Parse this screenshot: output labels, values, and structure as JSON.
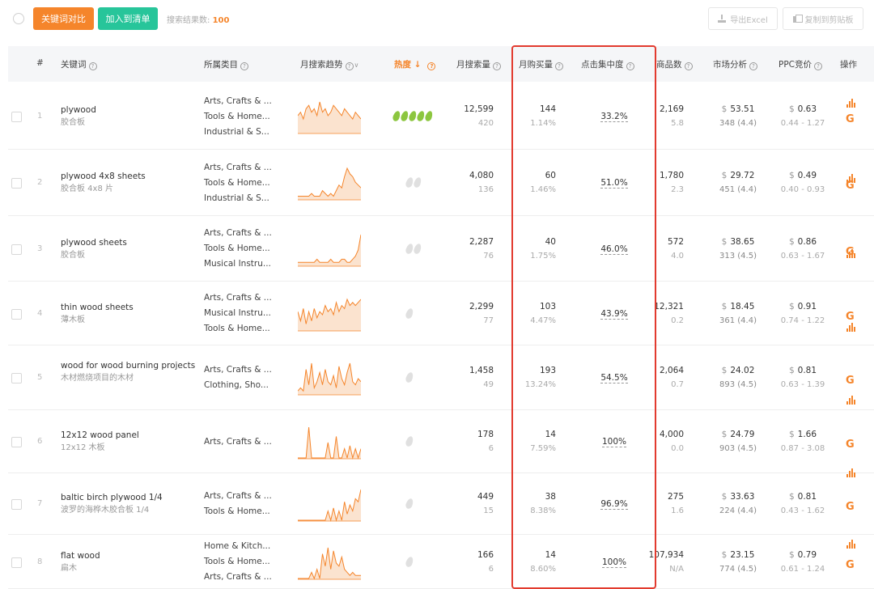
{
  "toolbar": {
    "compare_label": "关键词对比",
    "add_list_label": "加入到清单",
    "result_label": "搜索结果数:",
    "result_count": "100",
    "export_label": "导出Excel",
    "copy_label": "复制到剪贴板"
  },
  "headers": {
    "num": "#",
    "keyword": "关键词",
    "category": "所属类目",
    "trend": "月搜索趋势",
    "hot": "热度",
    "hot_arrow": "↓",
    "monthly_search": "月搜索量",
    "monthly_purchase": "月购买量",
    "click_concentration": "点击集中度",
    "product_count": "商品数",
    "market_analysis": "市场分析",
    "ppc": "PPC竞价",
    "ops": "操作"
  },
  "colors": {
    "orange": "#f5852b",
    "green": "#27c59a",
    "leaf": "#8cc63f",
    "highlight": "#e23b2f"
  },
  "rows": [
    {
      "num": "1",
      "kw_en": "plywood",
      "kw_cn": "胶合板",
      "cats": [
        "Arts, Crafts & ...",
        "Tools & Home...",
        "Industrial & S..."
      ],
      "hot": 4,
      "search": "12,599",
      "search_sub": "420",
      "purchase": "144",
      "purchase_rate": "1.14%",
      "conc": "33.2%",
      "products": "2,169",
      "products_sub": "5.8",
      "mkt_price": "53.51",
      "mkt_sub": "348 (4.4)",
      "ppc": "0.63",
      "ppc_range": "0.44 - 1.27",
      "trend": [
        5,
        6,
        4,
        7,
        8,
        6,
        7,
        5,
        9,
        6,
        7,
        5,
        6,
        8,
        7,
        6,
        5,
        7,
        6,
        5,
        4,
        6,
        5,
        4
      ]
    },
    {
      "num": "2",
      "kw_en": "plywood 4x8 sheets",
      "kw_cn": "胶合板 4x8 片",
      "cats": [
        "Arts, Crafts & ...",
        "Tools & Home...",
        "Industrial & S..."
      ],
      "hot": 2,
      "search": "4,080",
      "search_sub": "136",
      "purchase": "60",
      "purchase_rate": "1.46%",
      "conc": "51.0%",
      "products": "1,780",
      "products_sub": "2.3",
      "mkt_price": "29.72",
      "mkt_sub": "451 (4.4)",
      "ppc": "0.49",
      "ppc_range": "0.40 - 0.93",
      "trend": [
        1,
        1,
        1,
        1,
        1,
        2,
        1,
        1,
        1,
        3,
        2,
        1,
        2,
        1,
        3,
        5,
        4,
        8,
        11,
        9,
        8,
        6,
        5,
        4
      ]
    },
    {
      "num": "3",
      "kw_en": "plywood sheets",
      "kw_cn": "胶合板",
      "cats": [
        "Arts, Crafts & ...",
        "Tools & Home...",
        "Musical Instru..."
      ],
      "hot": 2,
      "search": "2,287",
      "search_sub": "76",
      "purchase": "40",
      "purchase_rate": "1.75%",
      "conc": "46.0%",
      "products": "572",
      "products_sub": "4.0",
      "mkt_price": "38.65",
      "mkt_sub": "313 (4.5)",
      "ppc": "0.86",
      "ppc_range": "0.63 - 1.67",
      "trend": [
        1,
        1,
        1,
        1,
        1,
        1,
        1,
        2,
        1,
        1,
        1,
        1,
        2,
        1,
        1,
        1,
        2,
        2,
        1,
        1,
        2,
        3,
        5,
        10
      ]
    },
    {
      "num": "4",
      "kw_en": "thin wood sheets",
      "kw_cn": "薄木板",
      "cats": [
        "Arts, Crafts & ...",
        "Musical Instru...",
        "Tools & Home..."
      ],
      "hot": 1,
      "search": "2,299",
      "search_sub": "77",
      "purchase": "103",
      "purchase_rate": "4.47%",
      "conc": "43.9%",
      "products": "12,321",
      "products_sub": "0.2",
      "mkt_price": "18.45",
      "mkt_sub": "361 (4.4)",
      "ppc": "0.91",
      "ppc_range": "0.74 - 1.22",
      "trend": [
        6,
        3,
        7,
        2,
        6,
        3,
        7,
        4,
        6,
        5,
        8,
        6,
        7,
        5,
        9,
        6,
        8,
        7,
        10,
        8,
        9,
        8,
        9,
        10
      ]
    },
    {
      "num": "5",
      "kw_en": "wood for wood burning projects",
      "kw_cn": "木材燃烧项目的木材",
      "cats": [
        "Arts, Crafts & ...",
        "Clothing, Sho..."
      ],
      "hot": 1,
      "search": "1,458",
      "search_sub": "49",
      "purchase": "193",
      "purchase_rate": "13.24%",
      "conc": "54.5%",
      "products": "2,064",
      "products_sub": "0.7",
      "mkt_price": "24.02",
      "mkt_sub": "893 (4.5)",
      "ppc": "0.81",
      "ppc_range": "0.63 - 1.39",
      "trend": [
        1,
        2,
        1,
        8,
        3,
        10,
        2,
        4,
        7,
        3,
        8,
        4,
        3,
        6,
        2,
        9,
        5,
        3,
        7,
        10,
        4,
        3,
        5,
        4
      ]
    },
    {
      "num": "6",
      "kw_en": "12x12 wood panel",
      "kw_cn": "12x12 木板",
      "cats": [
        "Arts, Crafts & ..."
      ],
      "hot": 1,
      "search": "178",
      "search_sub": "6",
      "purchase": "14",
      "purchase_rate": "7.59%",
      "conc": "100%",
      "products": "4,000",
      "products_sub": "0.0",
      "mkt_price": "24.79",
      "mkt_sub": "903 (4.5)",
      "ppc": "1.66",
      "ppc_range": "0.87 - 3.08",
      "trend": [
        0,
        0,
        0,
        0,
        10,
        0,
        0,
        0,
        0,
        0,
        0,
        5,
        0,
        0,
        7,
        0,
        0,
        3,
        0,
        4,
        0,
        3,
        0,
        3
      ]
    },
    {
      "num": "7",
      "kw_en": "baltic birch plywood 1/4",
      "kw_cn": "波罗的海桦木胶合板 1/4",
      "cats": [
        "Arts, Crafts & ...",
        "Tools & Home..."
      ],
      "hot": 1,
      "search": "449",
      "search_sub": "15",
      "purchase": "38",
      "purchase_rate": "8.38%",
      "conc": "96.9%",
      "products": "275",
      "products_sub": "1.6",
      "mkt_price": "33.63",
      "mkt_sub": "224 (4.4)",
      "ppc": "0.81",
      "ppc_range": "0.43 - 1.62",
      "trend": [
        0,
        0,
        0,
        0,
        0,
        0,
        0,
        0,
        0,
        0,
        0,
        3,
        0,
        4,
        0,
        3,
        0,
        6,
        2,
        5,
        3,
        7,
        6,
        10
      ]
    },
    {
      "num": "8",
      "kw_en": "flat wood",
      "kw_cn": "扁木",
      "cats": [
        "Home & Kitch...",
        "Tools & Home...",
        "Arts, Crafts & ..."
      ],
      "hot": 1,
      "search": "166",
      "search_sub": "6",
      "purchase": "14",
      "purchase_rate": "8.60%",
      "conc": "100%",
      "products": "107,934",
      "products_sub": "N/A",
      "mkt_price": "23.15",
      "mkt_sub": "774 (4.5)",
      "ppc": "0.79",
      "ppc_range": "0.61 - 1.24",
      "trend": [
        0,
        0,
        0,
        0,
        0,
        2,
        0,
        3,
        0,
        8,
        4,
        10,
        3,
        9,
        5,
        4,
        7,
        3,
        2,
        1,
        2,
        1,
        1,
        1
      ]
    }
  ]
}
